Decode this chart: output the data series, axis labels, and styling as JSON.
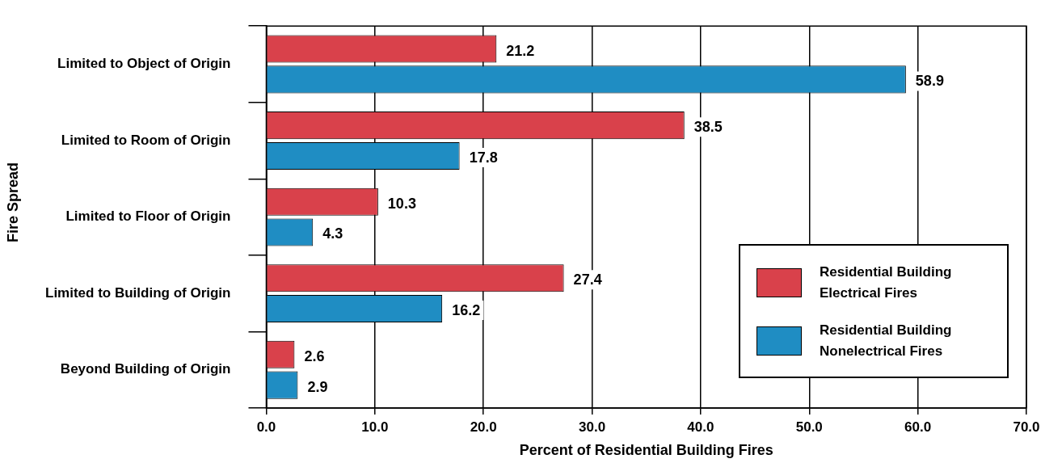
{
  "chart_data": {
    "type": "bar",
    "orientation": "horizontal",
    "xlabel": "Percent of Residential Building Fires",
    "ylabel": "Fire Spread",
    "categories": [
      "Limited to Object of Origin",
      "Limited to Room of Origin",
      "Limited to Floor of Origin",
      "Limited to Building of Origin",
      "Beyond Building of Origin"
    ],
    "series": [
      {
        "name": "Residential Building Electrical Fires",
        "color": "#d9414b",
        "values": [
          21.2,
          38.5,
          10.3,
          27.4,
          2.6
        ]
      },
      {
        "name": "Residential Building Nonelectrical Fires",
        "color": "#1f8dc3",
        "values": [
          58.9,
          17.8,
          4.3,
          16.2,
          2.9
        ]
      }
    ],
    "xlim": [
      0,
      70
    ],
    "xticks": [
      {
        "value": 0,
        "label": "0.0"
      },
      {
        "value": 10,
        "label": "10.0"
      },
      {
        "value": 20,
        "label": "20.0"
      },
      {
        "value": 30,
        "label": "30.0"
      },
      {
        "value": 40,
        "label": "40.0"
      },
      {
        "value": 50,
        "label": "50.0"
      },
      {
        "value": 60,
        "label": "60.0"
      },
      {
        "value": 70,
        "label": "70.0"
      }
    ],
    "grid": "x",
    "legend": "bottom right",
    "data_labels": true
  }
}
